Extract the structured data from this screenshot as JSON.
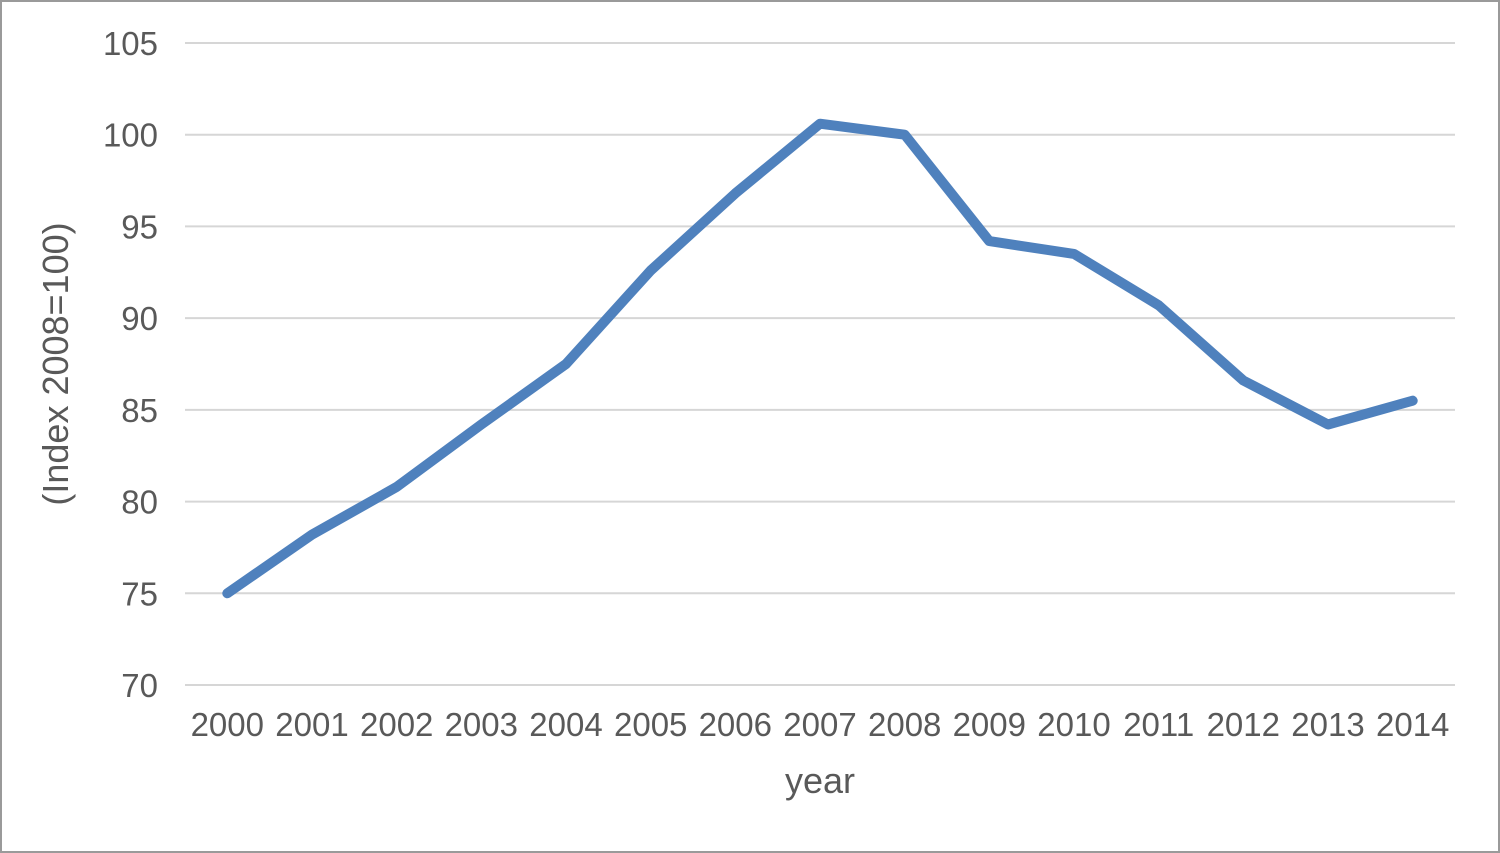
{
  "chart_data": {
    "type": "line",
    "title": "",
    "xlabel": "year",
    "ylabel": "(Index 2008=100)",
    "categories": [
      "2000",
      "2001",
      "2002",
      "2003",
      "2004",
      "2005",
      "2006",
      "2007",
      "2008",
      "2009",
      "2010",
      "2011",
      "2012",
      "2013",
      "2014"
    ],
    "series": [
      {
        "name": "index",
        "values": [
          75.0,
          78.2,
          80.8,
          84.2,
          87.5,
          92.6,
          96.8,
          100.6,
          100.0,
          94.2,
          93.5,
          90.7,
          86.6,
          84.2,
          85.5
        ]
      }
    ],
    "ylim": [
      70,
      105
    ],
    "y_ticks": [
      70,
      75,
      80,
      85,
      90,
      95,
      100,
      105
    ],
    "grid": true,
    "gridlines": "horizontal-only",
    "legend_position": "none",
    "line_color": "#4F81BD",
    "gridline_color": "#D6D6D6",
    "text_color": "#595959",
    "background_color": "#FFFFFF",
    "border_color": "#9A9A9A"
  }
}
